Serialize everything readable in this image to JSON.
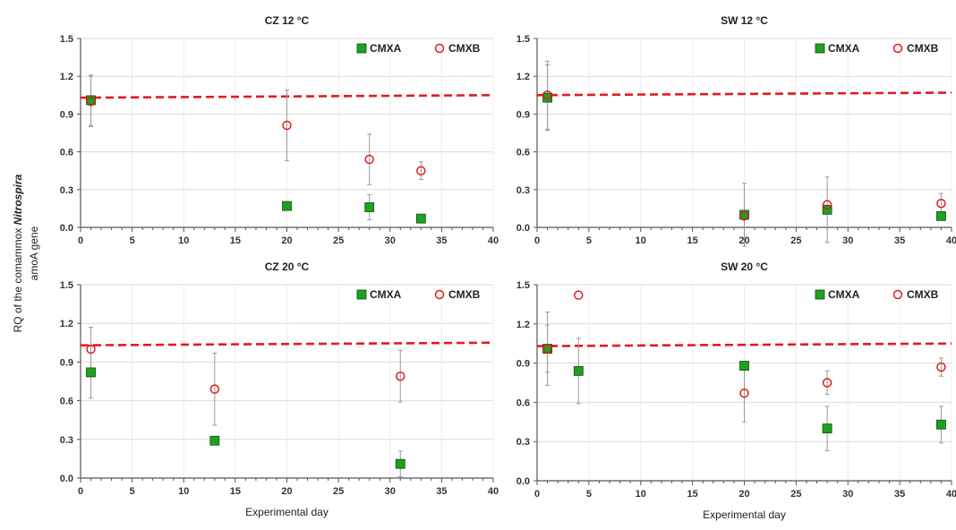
{
  "figure": {
    "ylabel_line1_prefix": "RQ of the  comammox ",
    "ylabel_line1_italic": "Nitrospira",
    "ylabel_line2": "amoA gene"
  },
  "chart_data": [
    {
      "type": "scatter",
      "title": "CZ 12 °C",
      "xlabel": "",
      "xlim": [
        0,
        40
      ],
      "ylim": [
        0,
        1.5
      ],
      "xticks": [
        0,
        5,
        10,
        15,
        20,
        25,
        30,
        35,
        40
      ],
      "yticks": [
        0.0,
        0.3,
        0.6,
        0.9,
        1.2,
        1.5
      ],
      "ytick_labels": [
        "0.0",
        "0.3",
        "0.6",
        "0.9",
        "1.2",
        "1.5"
      ],
      "legend_position": "top-right",
      "reference_line": {
        "y_start": 1.03,
        "y_end": 1.05,
        "color": "#e31a1c",
        "style": "dashed"
      },
      "series": [
        {
          "name": "CMXA",
          "marker": "square",
          "color": "#1fa01f",
          "x": [
            1,
            20,
            28,
            33
          ],
          "y": [
            1.01,
            0.17,
            0.16,
            0.07
          ],
          "err": [
            0.2,
            0.0,
            0.1,
            0.0
          ]
        },
        {
          "name": "CMXB",
          "marker": "circle",
          "color": "#e31a1c",
          "x": [
            1,
            20,
            28,
            33
          ],
          "y": [
            1.0,
            0.81,
            0.54,
            0.45
          ],
          "err": [
            0.2,
            0.28,
            0.2,
            0.07
          ]
        }
      ]
    },
    {
      "type": "scatter",
      "title": "SW 12 °C",
      "xlabel": "",
      "xlim": [
        0,
        40
      ],
      "ylim": [
        0,
        1.5
      ],
      "xticks": [
        0,
        5,
        10,
        15,
        20,
        25,
        30,
        35,
        40
      ],
      "yticks": [
        0.0,
        0.3,
        0.6,
        0.9,
        1.2,
        1.5
      ],
      "ytick_labels": [
        "0.0",
        "0.3",
        "0.6",
        "0.9",
        "1.2",
        "1.5"
      ],
      "legend_position": "top-right",
      "reference_line": {
        "y_start": 1.05,
        "y_end": 1.07,
        "color": "#e31a1c",
        "style": "dashed"
      },
      "series": [
        {
          "name": "CMXA",
          "marker": "square",
          "color": "#1fa01f",
          "x": [
            1,
            20,
            28,
            39
          ],
          "y": [
            1.03,
            0.1,
            0.14,
            0.09
          ],
          "err": [
            0.26,
            0.25,
            0.26,
            0.0
          ]
        },
        {
          "name": "CMXB",
          "marker": "circle",
          "color": "#e31a1c",
          "x": [
            1,
            20,
            28,
            39
          ],
          "y": [
            1.05,
            0.09,
            0.18,
            0.19
          ],
          "err": [
            0.27,
            0.0,
            0.0,
            0.08
          ]
        }
      ]
    },
    {
      "type": "scatter",
      "title": "CZ 20 °C",
      "xlabel": "Experimental day",
      "xlim": [
        0,
        40
      ],
      "ylim": [
        0,
        1.5
      ],
      "xticks": [
        0,
        5,
        10,
        15,
        20,
        25,
        30,
        35,
        40
      ],
      "yticks": [
        0.0,
        0.3,
        0.6,
        0.9,
        1.2,
        1.5
      ],
      "ytick_labels": [
        "0.0",
        "0.3",
        "0.6",
        "0.9",
        "1.2",
        "1.5"
      ],
      "legend_position": "top-right",
      "reference_line": {
        "y_start": 1.03,
        "y_end": 1.05,
        "color": "#e31a1c",
        "style": "dashed"
      },
      "series": [
        {
          "name": "CMXA",
          "marker": "square",
          "color": "#1fa01f",
          "x": [
            1,
            13,
            31
          ],
          "y": [
            0.82,
            0.29,
            0.11
          ],
          "err": [
            0.2,
            0.0,
            0.1
          ]
        },
        {
          "name": "CMXB",
          "marker": "circle",
          "color": "#e31a1c",
          "x": [
            1,
            13,
            31
          ],
          "y": [
            1.0,
            0.69,
            0.79
          ],
          "err": [
            0.17,
            0.28,
            0.2
          ]
        }
      ]
    },
    {
      "type": "scatter",
      "title": "SW 20 °C",
      "xlabel": "Experimental day",
      "xlim": [
        0,
        40
      ],
      "ylim": [
        0,
        1.5
      ],
      "xticks": [
        0,
        5,
        10,
        15,
        20,
        25,
        30,
        35,
        40
      ],
      "yticks": [
        0.0,
        0.3,
        0.6,
        0.9,
        1.2,
        1.5
      ],
      "ytick_labels": [
        "0.0",
        "0.3",
        "0.6",
        "0.9",
        "1.2",
        "1.5"
      ],
      "legend_position": "top-right",
      "reference_line": {
        "y_start": 1.03,
        "y_end": 1.05,
        "color": "#e31a1c",
        "style": "dashed"
      },
      "series": [
        {
          "name": "CMXA",
          "marker": "square",
          "color": "#1fa01f",
          "x": [
            1,
            4,
            20,
            28,
            39
          ],
          "y": [
            1.01,
            0.84,
            0.88,
            0.4,
            0.43
          ],
          "err": [
            0.28,
            0.25,
            0.0,
            0.17,
            0.14
          ]
        },
        {
          "name": "CMXB",
          "marker": "circle",
          "color": "#e31a1c",
          "x": [
            1,
            4,
            20,
            28,
            39
          ],
          "y": [
            1.01,
            1.42,
            0.67,
            0.75,
            0.87
          ],
          "err": [
            0.18,
            0.0,
            0.22,
            0.09,
            0.07
          ]
        }
      ]
    }
  ]
}
